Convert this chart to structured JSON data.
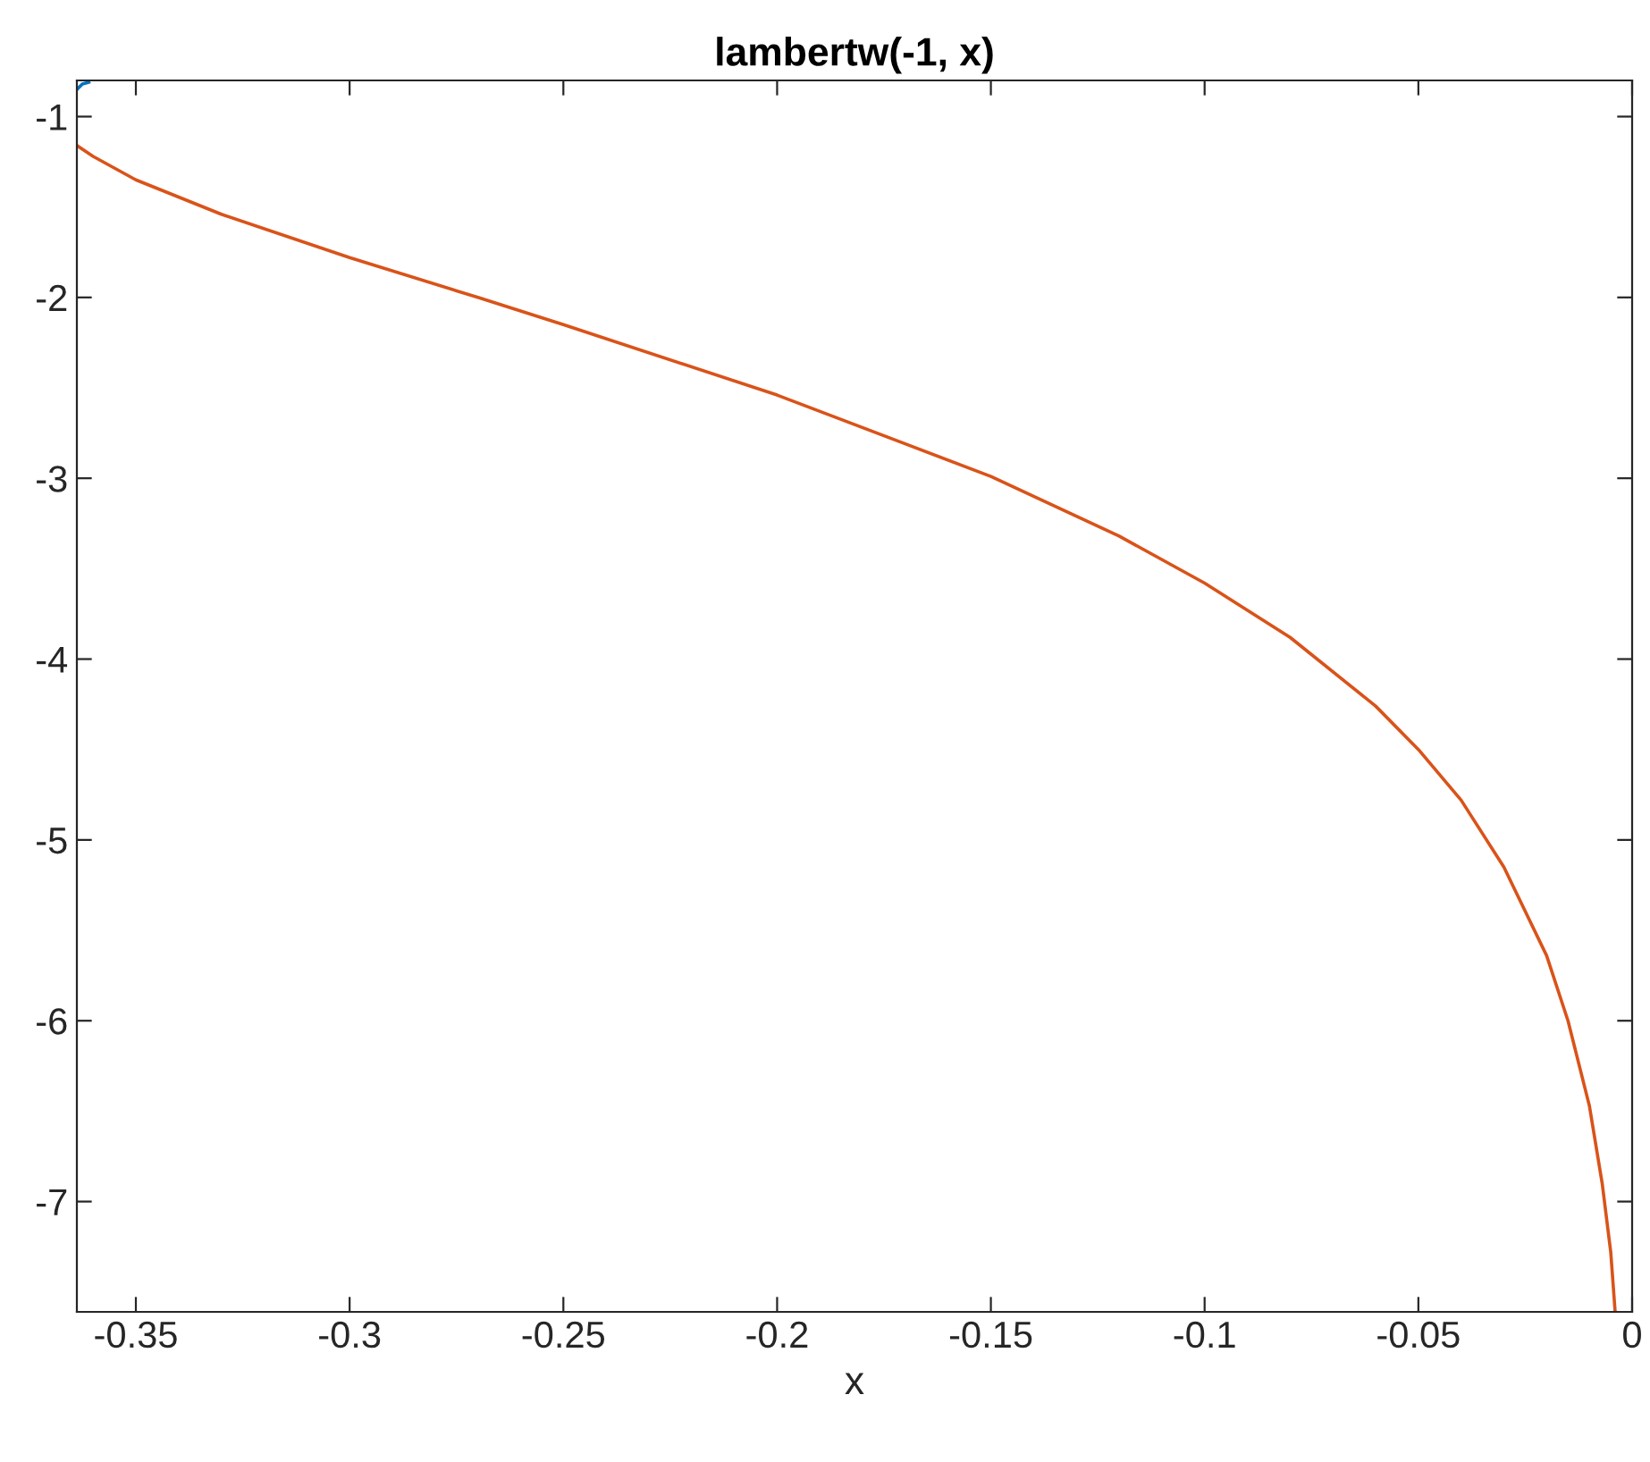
{
  "chart_data": {
    "type": "line",
    "title": "lambertw(-1, x)",
    "xlabel": "x",
    "xlim": [
      -0.3638,
      0
    ],
    "ylim": [
      -7.61,
      -0.8
    ],
    "xticks": [
      {
        "value": -0.35,
        "label": "-0.35"
      },
      {
        "value": -0.3,
        "label": "-0.3"
      },
      {
        "value": -0.25,
        "label": "-0.25"
      },
      {
        "value": -0.2,
        "label": "-0.2"
      },
      {
        "value": -0.15,
        "label": "-0.15"
      },
      {
        "value": -0.1,
        "label": "-0.1"
      },
      {
        "value": -0.05,
        "label": "-0.05"
      },
      0
    ],
    "yticks": [
      {
        "value": -7,
        "label": "-7"
      },
      {
        "value": -6,
        "label": "-6"
      },
      {
        "value": -5,
        "label": "-5"
      },
      {
        "value": -4,
        "label": "-4"
      },
      {
        "value": -3,
        "label": "-3"
      },
      {
        "value": -2,
        "label": "-2"
      },
      {
        "value": -1,
        "label": "-1"
      }
    ],
    "grid": false,
    "marker": "none",
    "line_style": "solid",
    "series": [
      {
        "color": "#0072bd",
        "x": [
          -0.3638,
          -0.3625,
          -0.361
        ],
        "values": [
          -0.85,
          -0.82,
          -0.81
        ]
      },
      {
        "color": "#d95319",
        "x": [
          -0.3638,
          -0.36,
          -0.35,
          -0.33,
          -0.3,
          -0.27,
          -0.25,
          -0.2,
          -0.15,
          -0.12,
          -0.1,
          -0.08,
          -0.06,
          -0.05,
          -0.04,
          -0.03,
          -0.02,
          -0.015,
          -0.01,
          -0.007,
          -0.005,
          -0.004
        ],
        "values": [
          -1.16,
          -1.22,
          -1.35,
          -1.54,
          -1.78,
          -2.0,
          -2.15,
          -2.54,
          -2.99,
          -3.32,
          -3.58,
          -3.88,
          -4.26,
          -4.5,
          -4.78,
          -5.15,
          -5.64,
          -6.0,
          -6.47,
          -6.9,
          -7.28,
          -7.6
        ]
      }
    ]
  }
}
